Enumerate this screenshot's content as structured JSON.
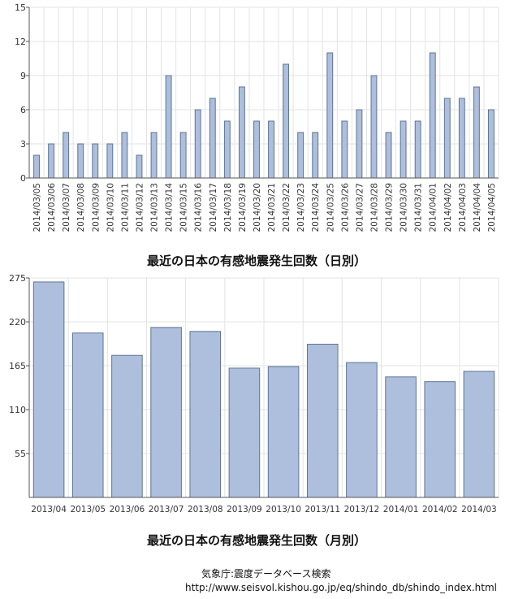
{
  "chart_data": [
    {
      "type": "bar",
      "title": "最近の日本の有感地震発生回数（日別）",
      "categories": [
        "2014/03/05",
        "2014/03/06",
        "2014/03/07",
        "2014/03/08",
        "2014/03/09",
        "2014/03/10",
        "2014/03/11",
        "2014/03/12",
        "2014/03/13",
        "2014/03/14",
        "2014/03/15",
        "2014/03/16",
        "2014/03/17",
        "2014/03/18",
        "2014/03/19",
        "2014/03/20",
        "2014/03/21",
        "2014/03/22",
        "2014/03/23",
        "2014/03/24",
        "2014/03/25",
        "2014/03/26",
        "2014/03/27",
        "2014/03/28",
        "2014/03/29",
        "2014/03/30",
        "2014/03/31",
        "2014/04/01",
        "2014/04/02",
        "2014/04/03",
        "2014/04/04",
        "2014/04/05"
      ],
      "values": [
        2,
        3,
        4,
        3,
        3,
        3,
        4,
        2,
        4,
        9,
        4,
        6,
        7,
        5,
        8,
        5,
        5,
        10,
        4,
        4,
        11,
        5,
        6,
        9,
        4,
        5,
        5,
        11,
        7,
        7,
        8,
        6
      ],
      "yticks": [
        0,
        3,
        6,
        9,
        12,
        15
      ],
      "ylim": [
        0,
        15
      ],
      "grid": true,
      "xlabel": "",
      "ylabel": ""
    },
    {
      "type": "bar",
      "title": "最近の日本の有感地震発生回数（月別）",
      "categories": [
        "2013/04",
        "2013/05",
        "2013/06",
        "2013/07",
        "2013/08",
        "2013/09",
        "2013/10",
        "2013/11",
        "2013/12",
        "2014/01",
        "2014/02",
        "2014/03"
      ],
      "values": [
        270,
        206,
        178,
        213,
        208,
        162,
        164,
        192,
        169,
        151,
        145,
        158
      ],
      "yticks": [
        55,
        110,
        165,
        220,
        275
      ],
      "ylim": [
        0,
        275
      ],
      "grid": true,
      "xlabel": "",
      "ylabel": ""
    }
  ],
  "source": {
    "line1": "気象庁:震度データベース検索",
    "line2": "http://www.seisvol.kishou.go.jp/eq/shindo_db/shindo_index.html"
  },
  "colors": {
    "bar_fill": "#adbfdc",
    "bar_stroke": "#5d7496",
    "grid": "#e3e3e3"
  }
}
